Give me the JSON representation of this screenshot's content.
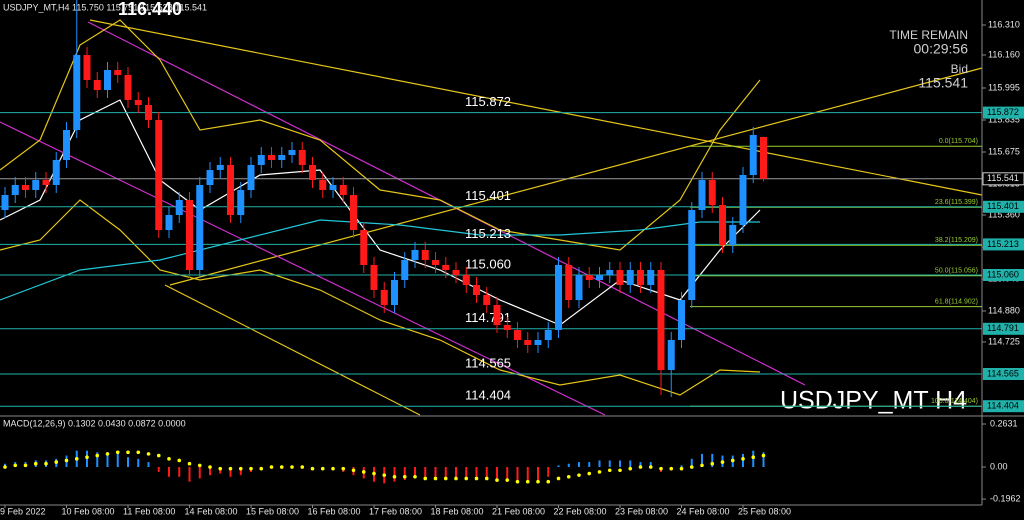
{
  "chart_data": [
    {
      "type": "candlestick",
      "title": "USDJPY_MT,H4  115.750 115.751 115.528 115.541",
      "high_label": {
        "value": 116.44,
        "label": "116.440"
      },
      "time_remain_label": "TIME REMAIN",
      "time_remain": "00:29:56",
      "bid_label": "Bid",
      "bid": 115.541,
      "watermark": "USDJPY_MT H4",
      "up_color": "#1e90ff",
      "down_color": "#ff1a1a",
      "level_color": "#20b2aa",
      "fib_color": "#9acd32",
      "bid_color": "#9a9a9a",
      "categories": [
        "9 Feb 2022",
        null,
        null,
        null,
        null,
        null,
        "10 Feb 08:00",
        null,
        null,
        null,
        null,
        null,
        "11 Feb 08:00",
        null,
        null,
        null,
        null,
        null,
        "14 Feb 08:00",
        null,
        null,
        null,
        null,
        null,
        "15 Feb 08:00",
        null,
        null,
        null,
        null,
        null,
        "16 Feb 08:00",
        null,
        null,
        null,
        null,
        null,
        "17 Feb 08:00",
        null,
        null,
        null,
        null,
        null,
        "18 Feb 08:00",
        null,
        null,
        null,
        null,
        null,
        "21 Feb 08:00",
        null,
        null,
        null,
        null,
        null,
        "22 Feb 08:00",
        null,
        null,
        null,
        null,
        null,
        "23 Feb 08:00",
        null,
        null,
        null,
        null,
        null,
        "24 Feb 08:00",
        null,
        null,
        null,
        null,
        null,
        "25 Feb 08:00",
        null,
        null
      ],
      "open": [
        115.385,
        115.46,
        115.51,
        115.485,
        115.535,
        115.51,
        115.635,
        115.785,
        116.16,
        116.035,
        115.985,
        116.085,
        116.06,
        115.935,
        115.91,
        115.835,
        115.285,
        115.36,
        115.435,
        115.085,
        115.51,
        115.585,
        115.61,
        115.36,
        115.485,
        115.61,
        115.66,
        115.635,
        115.66,
        115.685,
        115.61,
        115.535,
        115.485,
        115.51,
        115.46,
        115.285,
        115.11,
        114.985,
        114.91,
        115.035,
        115.135,
        115.185,
        115.135,
        115.11,
        115.085,
        115.06,
        115.01,
        114.96,
        114.91,
        114.81,
        114.785,
        114.735,
        114.71,
        114.735,
        114.785,
        115.11,
        114.935,
        115.06,
        115.035,
        115.06,
        115.085,
        115.01,
        115.085,
        115.01,
        115.085,
        114.585,
        114.735,
        114.935,
        115.385,
        115.535,
        115.41,
        115.21,
        115.31,
        115.56,
        115.75
      ],
      "high": [
        115.5,
        115.55,
        115.55,
        115.575,
        115.575,
        115.675,
        115.825,
        116.44,
        116.2,
        116.075,
        116.125,
        116.125,
        116.1,
        115.975,
        115.95,
        115.875,
        115.4,
        115.475,
        115.475,
        115.55,
        115.625,
        115.65,
        115.65,
        115.525,
        115.65,
        115.7,
        115.7,
        115.7,
        115.725,
        115.725,
        115.65,
        115.575,
        115.55,
        115.55,
        115.5,
        115.325,
        115.15,
        115.025,
        115.075,
        115.175,
        115.225,
        115.225,
        115.175,
        115.15,
        115.125,
        115.1,
        115.05,
        115,
        114.95,
        114.85,
        114.825,
        114.775,
        114.775,
        114.825,
        115.15,
        115.15,
        115.1,
        115.1,
        115.1,
        115.125,
        115.125,
        115.125,
        115.125,
        115.125,
        115.125,
        114.775,
        114.975,
        115.425,
        115.575,
        115.575,
        115.45,
        115.35,
        115.6,
        115.8,
        115.751
      ],
      "low": [
        115.345,
        115.42,
        115.445,
        115.445,
        115.47,
        115.47,
        115.595,
        115.745,
        115.995,
        115.945,
        115.945,
        116.02,
        115.895,
        115.87,
        115.795,
        115.245,
        115.245,
        115.32,
        115.045,
        115.045,
        115.47,
        115.545,
        115.32,
        115.32,
        115.445,
        115.57,
        115.595,
        115.595,
        115.62,
        115.57,
        115.495,
        115.445,
        115.445,
        115.42,
        115.245,
        115.07,
        114.945,
        114.87,
        114.87,
        114.995,
        115.095,
        115.095,
        115.07,
        115.045,
        115.02,
        114.97,
        114.92,
        114.87,
        114.77,
        114.745,
        114.695,
        114.67,
        114.67,
        114.695,
        114.745,
        114.895,
        114.895,
        114.995,
        114.995,
        115.02,
        114.97,
        114.97,
        114.97,
        114.97,
        114.46,
        114.45,
        114.695,
        114.895,
        115.345,
        115.37,
        115.17,
        115.17,
        115.27,
        115.52,
        115.528
      ],
      "close": [
        115.46,
        115.51,
        115.485,
        115.535,
        115.51,
        115.635,
        115.785,
        116.16,
        116.035,
        115.985,
        116.085,
        116.06,
        115.935,
        115.91,
        115.835,
        115.285,
        115.36,
        115.435,
        115.085,
        115.51,
        115.585,
        115.61,
        115.36,
        115.485,
        115.61,
        115.66,
        115.635,
        115.66,
        115.685,
        115.61,
        115.535,
        115.485,
        115.51,
        115.46,
        115.285,
        115.11,
        114.985,
        114.91,
        115.035,
        115.135,
        115.185,
        115.135,
        115.11,
        115.085,
        115.06,
        115.01,
        114.96,
        114.91,
        114.81,
        114.785,
        114.735,
        114.71,
        114.735,
        114.785,
        115.11,
        114.935,
        115.06,
        115.035,
        115.06,
        115.085,
        115.01,
        115.085,
        115.01,
        115.085,
        114.585,
        114.735,
        114.935,
        115.385,
        115.535,
        115.41,
        115.21,
        115.31,
        115.56,
        115.76,
        115.541
      ],
      "ylim": [
        114.36,
        116.435
      ],
      "yticks": [
        {
          "value": 116.31,
          "label": "116.310"
        },
        {
          "value": 116.16,
          "label": "116.160"
        },
        115.995,
        115.835,
        115.675,
        115.515,
        {
          "value": 115.36,
          "label": "115.360"
        },
        {
          "value": 115.2,
          "label": "115.200"
        },
        {
          "value": 115.04,
          "label": "115.040"
        },
        {
          "value": 114.88,
          "label": "114.880"
        },
        114.725
      ],
      "levels": [
        115.872,
        115.401,
        115.213,
        {
          "value": 115.06,
          "label": "115.060"
        },
        114.791,
        114.565,
        114.404
      ],
      "fib_levels": [
        {
          "value": 115.704,
          "label": "0.0(115.704)"
        },
        {
          "value": 115.399,
          "label": "23.6(115.399)"
        },
        {
          "value": 115.209,
          "label": "38.2(115.209)"
        },
        {
          "value": 115.056,
          "label": "50.0(115.056)"
        },
        {
          "value": 114.902,
          "label": "61.8(114.902)"
        },
        {
          "value": 114.404,
          "label": "100.0(114.404)"
        }
      ]
    },
    {
      "type": "macd",
      "title": "MACD(12,26,9) 0.1302 0.0430 0.0872 0.0000",
      "up_color": "#1e90ff",
      "down_color": "#ff1a1a",
      "signal_color": "#ffff00",
      "histogram": [
        0.02,
        0.03,
        0.03,
        0.04,
        0.04,
        0.05,
        0.07,
        0.1,
        0.1,
        0.09,
        0.09,
        0.08,
        0.06,
        0.05,
        0.03,
        -0.03,
        -0.06,
        -0.06,
        -0.09,
        -0.07,
        -0.05,
        -0.04,
        -0.06,
        -0.05,
        -0.03,
        -0.02,
        -0.01,
        -0.01,
        0,
        -0.01,
        -0.02,
        -0.02,
        -0.02,
        -0.03,
        -0.05,
        -0.07,
        -0.09,
        -0.1,
        -0.09,
        -0.08,
        -0.07,
        -0.06,
        -0.06,
        -0.06,
        -0.06,
        -0.06,
        -0.06,
        -0.07,
        -0.08,
        -0.08,
        -0.09,
        -0.09,
        -0.08,
        -0.06,
        0.01,
        0.02,
        0.03,
        0.03,
        0.04,
        0.04,
        0.04,
        0.04,
        0.03,
        0.03,
        -0.03,
        -0.02,
        0.01,
        0.05,
        0.08,
        0.08,
        0.07,
        0.07,
        0.08,
        0.1,
        0.09
      ],
      "signal": [
        0,
        0.01,
        0.01,
        0.02,
        0.02,
        0.03,
        0.04,
        0.05,
        0.06,
        0.07,
        0.08,
        0.09,
        0.09,
        0.09,
        0.08,
        0.07,
        0.05,
        0.04,
        0.02,
        0.01,
        0,
        -0.01,
        -0.01,
        -0.01,
        -0.01,
        -0.01,
        0,
        0,
        0,
        0,
        -0.01,
        -0.01,
        -0.01,
        -0.01,
        -0.02,
        -0.03,
        -0.04,
        -0.05,
        -0.06,
        -0.06,
        -0.06,
        -0.07,
        -0.07,
        -0.07,
        -0.07,
        -0.07,
        -0.07,
        -0.07,
        -0.08,
        -0.08,
        -0.09,
        -0.09,
        -0.09,
        -0.09,
        -0.07,
        -0.06,
        -0.05,
        -0.04,
        -0.03,
        -0.02,
        -0.02,
        -0.01,
        0,
        0,
        -0.01,
        -0.01,
        -0.01,
        0,
        0.01,
        0.02,
        0.03,
        0.04,
        0.05,
        0.06,
        0.07
      ],
      "ylim": [
        -0.2325,
        0.306
      ],
      "yticks": [
        0.2631,
        {
          "value": 0,
          "label": "0.00"
        },
        -0.1962
      ]
    }
  ]
}
